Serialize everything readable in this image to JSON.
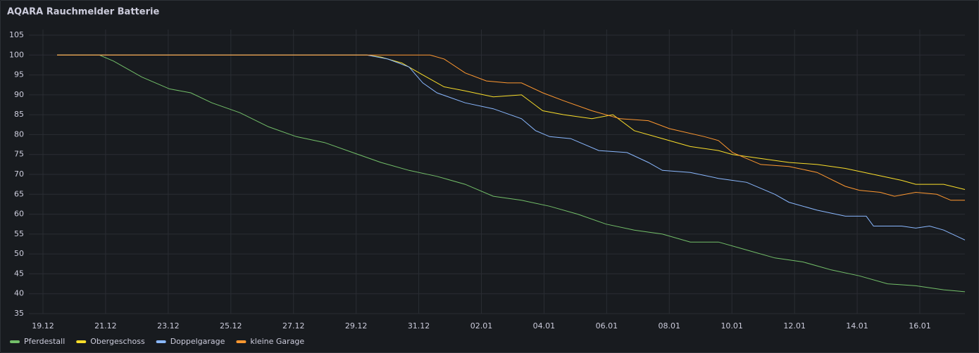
{
  "chart_data": {
    "type": "line",
    "title": "AQARA Rauchmelder Batterie",
    "xlim": [
      -0.45,
      29.44
    ],
    "xticks": [
      {
        "value": 0,
        "label": "19.12"
      },
      {
        "value": 2,
        "label": "21.12"
      },
      {
        "value": 4,
        "label": "23.12"
      },
      {
        "value": 6,
        "label": "25.12"
      },
      {
        "value": 8,
        "label": "27.12"
      },
      {
        "value": 10,
        "label": "29.12"
      },
      {
        "value": 12,
        "label": "31.12"
      },
      {
        "value": 14,
        "label": "02.01"
      },
      {
        "value": 16,
        "label": "04.01"
      },
      {
        "value": 18,
        "label": "06.01"
      },
      {
        "value": 20,
        "label": "08.01"
      },
      {
        "value": 22,
        "label": "10.01"
      },
      {
        "value": 24,
        "label": "12.01"
      },
      {
        "value": 26,
        "label": "14.01"
      },
      {
        "value": 28,
        "label": "16.01"
      }
    ],
    "ylim": [
      35,
      105
    ],
    "yticks": [
      35,
      40,
      45,
      50,
      55,
      60,
      65,
      70,
      75,
      80,
      85,
      90,
      95,
      100,
      105
    ],
    "grid": true,
    "legend": "bottom-left",
    "series": [
      {
        "name": "Pferdestall",
        "color": "#73bf69",
        "x": [
          0.45,
          1.8,
          2.25,
          3.15,
          4.04,
          4.72,
          5.39,
          6.29,
          7.19,
          8.09,
          8.99,
          9.89,
          10.79,
          11.69,
          12.58,
          13.48,
          14.38,
          15.28,
          16.18,
          17.08,
          17.98,
          18.88,
          19.78,
          20.67,
          21.57,
          22.47,
          23.37,
          24.27,
          25.17,
          26.07,
          26.97,
          27.87,
          28.76,
          29.44
        ],
        "values": [
          100,
          100,
          98.5,
          94.5,
          91.5,
          90.5,
          88,
          85.5,
          82,
          79.5,
          78,
          75.5,
          73,
          71,
          69.5,
          67.5,
          64.5,
          63.5,
          62,
          60,
          57.5,
          56,
          55,
          53,
          53,
          51,
          49,
          48,
          46,
          44.5,
          42.5,
          42,
          41,
          40.5
        ]
      },
      {
        "name": "Obergeschoss",
        "color": "#fade2a",
        "x": [
          0.45,
          10.34,
          10.79,
          11.46,
          12.13,
          12.81,
          13.48,
          14.38,
          15.28,
          15.96,
          16.63,
          17.53,
          18.2,
          18.88,
          19.78,
          20.67,
          21.57,
          22.02,
          22.92,
          23.82,
          24.72,
          25.62,
          26.52,
          27.42,
          27.87,
          28.76,
          29.44
        ],
        "values": [
          100,
          100,
          99.5,
          98,
          95,
          92,
          91,
          89.5,
          90,
          86,
          85,
          84,
          85,
          81,
          79,
          77,
          76,
          75,
          74,
          73,
          72.5,
          71.5,
          70,
          68.5,
          67.5,
          67.5,
          66.2
        ]
      },
      {
        "name": "Doppelgarage",
        "color": "#8ab8ff",
        "x": [
          0.45,
          10.34,
          11.01,
          11.69,
          12.13,
          12.58,
          13.48,
          14.38,
          15.28,
          15.73,
          16.18,
          16.85,
          17.75,
          18.65,
          19.33,
          19.78,
          20.67,
          21.57,
          22.47,
          23.37,
          23.82,
          24.72,
          25.62,
          26.29,
          26.52,
          27.42,
          27.87,
          28.31,
          28.76,
          29.44
        ],
        "values": [
          100,
          100,
          99,
          97,
          93,
          90.5,
          88,
          86.5,
          84,
          81,
          79.5,
          79,
          76,
          75.5,
          73,
          71,
          70.5,
          69,
          68,
          65,
          63,
          61,
          59.5,
          59.5,
          57,
          57,
          56.5,
          57,
          56,
          53.5
        ]
      },
      {
        "name": "kleine Garage",
        "color": "#ff9830",
        "x": [
          0.45,
          12.36,
          12.81,
          13.48,
          14.16,
          14.83,
          15.28,
          15.96,
          16.63,
          17.53,
          18.43,
          19.33,
          20.0,
          21.12,
          21.57,
          22.02,
          22.92,
          23.82,
          24.72,
          25.62,
          26.07,
          26.74,
          27.19,
          27.87,
          28.54,
          28.99,
          29.44
        ],
        "values": [
          100,
          100,
          99,
          95.5,
          93.5,
          93,
          93,
          90.5,
          88.5,
          86,
          84,
          83.5,
          81.5,
          79.5,
          78.5,
          75.5,
          72.5,
          72,
          70.5,
          67,
          66,
          65.5,
          64.5,
          65.5,
          65,
          63.5,
          63.5
        ]
      }
    ]
  }
}
